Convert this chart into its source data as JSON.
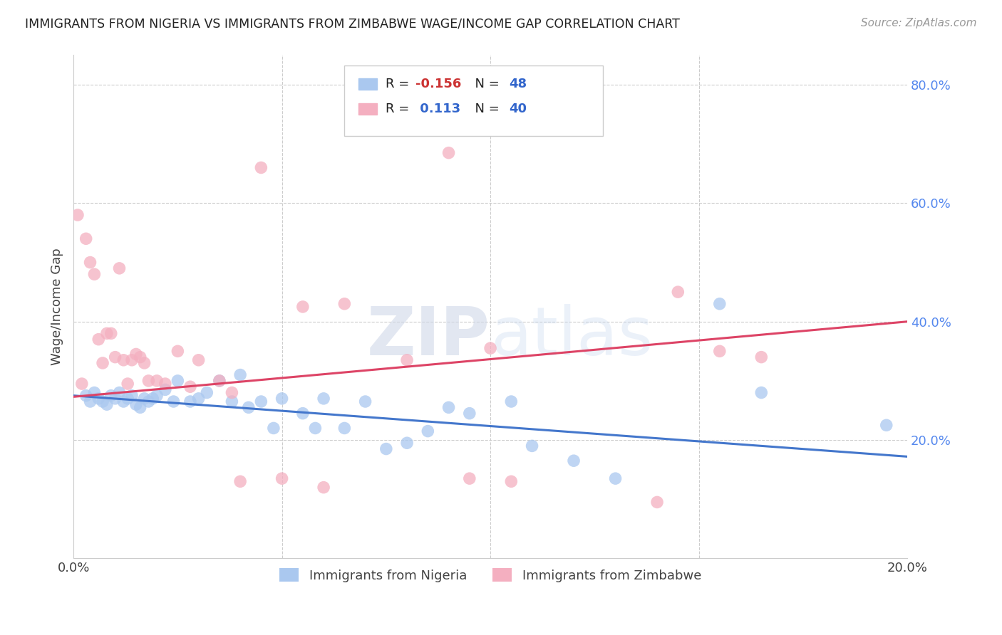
{
  "title": "IMMIGRANTS FROM NIGERIA VS IMMIGRANTS FROM ZIMBABWE WAGE/INCOME GAP CORRELATION CHART",
  "source": "Source: ZipAtlas.com",
  "ylabel_left": "Wage/Income Gap",
  "legend_nigeria": "Immigrants from Nigeria",
  "legend_zimbabwe": "Immigrants from Zimbabwe",
  "nigeria_R": -0.156,
  "nigeria_N": 48,
  "zimbabwe_R": 0.113,
  "zimbabwe_N": 40,
  "nigeria_color": "#aac8ef",
  "zimbabwe_color": "#f4afc0",
  "nigeria_line_color": "#4477cc",
  "zimbabwe_line_color": "#dd4466",
  "watermark": "ZIPatlas",
  "xlim": [
    0.0,
    0.2
  ],
  "ylim": [
    0.0,
    0.85
  ],
  "right_yticks": [
    0.2,
    0.4,
    0.6,
    0.8
  ],
  "right_yticklabels": [
    "20.0%",
    "40.0%",
    "60.0%",
    "80.0%"
  ],
  "nigeria_line_x0": 0.0,
  "nigeria_line_y0": 0.275,
  "nigeria_line_x1": 0.2,
  "nigeria_line_y1": 0.172,
  "zimbabwe_line_x0": 0.0,
  "zimbabwe_line_y0": 0.273,
  "zimbabwe_line_x1": 0.2,
  "zimbabwe_line_y1": 0.4,
  "nigeria_points_x": [
    0.003,
    0.004,
    0.005,
    0.006,
    0.007,
    0.008,
    0.009,
    0.01,
    0.011,
    0.012,
    0.013,
    0.014,
    0.015,
    0.016,
    0.017,
    0.018,
    0.019,
    0.02,
    0.022,
    0.024,
    0.025,
    0.028,
    0.03,
    0.032,
    0.035,
    0.038,
    0.04,
    0.042,
    0.045,
    0.048,
    0.05,
    0.055,
    0.058,
    0.06,
    0.065,
    0.07,
    0.075,
    0.08,
    0.085,
    0.09,
    0.095,
    0.105,
    0.11,
    0.12,
    0.13,
    0.155,
    0.165,
    0.195
  ],
  "nigeria_points_y": [
    0.275,
    0.265,
    0.28,
    0.27,
    0.265,
    0.26,
    0.275,
    0.27,
    0.28,
    0.265,
    0.27,
    0.275,
    0.26,
    0.255,
    0.27,
    0.265,
    0.27,
    0.275,
    0.285,
    0.265,
    0.3,
    0.265,
    0.27,
    0.28,
    0.3,
    0.265,
    0.31,
    0.255,
    0.265,
    0.22,
    0.27,
    0.245,
    0.22,
    0.27,
    0.22,
    0.265,
    0.185,
    0.195,
    0.215,
    0.255,
    0.245,
    0.265,
    0.19,
    0.165,
    0.135,
    0.43,
    0.28,
    0.225
  ],
  "zimbabwe_points_x": [
    0.001,
    0.002,
    0.003,
    0.004,
    0.005,
    0.006,
    0.007,
    0.008,
    0.009,
    0.01,
    0.011,
    0.012,
    0.013,
    0.014,
    0.015,
    0.016,
    0.017,
    0.018,
    0.02,
    0.022,
    0.025,
    0.028,
    0.03,
    0.035,
    0.038,
    0.04,
    0.045,
    0.05,
    0.055,
    0.06,
    0.065,
    0.08,
    0.09,
    0.095,
    0.1,
    0.105,
    0.14,
    0.145,
    0.155,
    0.165
  ],
  "zimbabwe_points_y": [
    0.58,
    0.295,
    0.54,
    0.5,
    0.48,
    0.37,
    0.33,
    0.38,
    0.38,
    0.34,
    0.49,
    0.335,
    0.295,
    0.335,
    0.345,
    0.34,
    0.33,
    0.3,
    0.3,
    0.295,
    0.35,
    0.29,
    0.335,
    0.3,
    0.28,
    0.13,
    0.66,
    0.135,
    0.425,
    0.12,
    0.43,
    0.335,
    0.685,
    0.135,
    0.355,
    0.13,
    0.095,
    0.45,
    0.35,
    0.34
  ]
}
